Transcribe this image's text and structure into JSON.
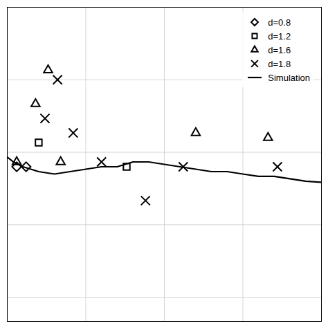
{
  "chart_data": {
    "type": "scatter",
    "series": [
      {
        "name": "d=0.8",
        "type": "scatter",
        "marker": "diamond",
        "x": [
          0.03,
          0.06
        ],
        "values": [
          0.72,
          0.72
        ]
      },
      {
        "name": "d=1.2",
        "type": "scatter",
        "marker": "square",
        "x": [
          0.1,
          0.38
        ],
        "values": [
          0.77,
          0.72
        ]
      },
      {
        "name": "d=1.6",
        "type": "scatter",
        "marker": "triangle",
        "x": [
          0.03,
          0.09,
          0.13,
          0.17,
          0.6,
          0.83
        ],
        "values": [
          0.73,
          0.85,
          0.92,
          0.73,
          0.79,
          0.78
        ]
      },
      {
        "name": "d=1.8",
        "type": "scatter",
        "marker": "x",
        "x": [
          0.12,
          0.16,
          0.21,
          0.3,
          0.44,
          0.56,
          0.86
        ],
        "values": [
          0.82,
          0.9,
          0.79,
          0.73,
          0.65,
          0.72,
          0.72
        ]
      },
      {
        "name": "Simulation",
        "type": "line",
        "x": [
          0.0,
          0.02,
          0.05,
          0.1,
          0.15,
          0.2,
          0.25,
          0.3,
          0.35,
          0.4,
          0.45,
          0.5,
          0.55,
          0.6,
          0.65,
          0.7,
          0.75,
          0.8,
          0.85,
          0.9,
          0.95,
          1.0
        ],
        "values": [
          0.74,
          0.73,
          0.72,
          0.71,
          0.705,
          0.71,
          0.715,
          0.72,
          0.72,
          0.73,
          0.73,
          0.725,
          0.72,
          0.715,
          0.71,
          0.71,
          0.705,
          0.7,
          0.7,
          0.695,
          0.69,
          0.688
        ]
      }
    ],
    "color": "black",
    "xlim": [
      0.0,
      1.0
    ],
    "ylim": [
      0.4,
      1.05
    ],
    "xticks": [
      0,
      0.25,
      0.5,
      0.75,
      1.0
    ],
    "yticks": [
      0.45,
      0.6,
      0.75,
      0.9,
      1.05
    ],
    "grid": true,
    "tick_labels": false,
    "legend": "upper right"
  }
}
